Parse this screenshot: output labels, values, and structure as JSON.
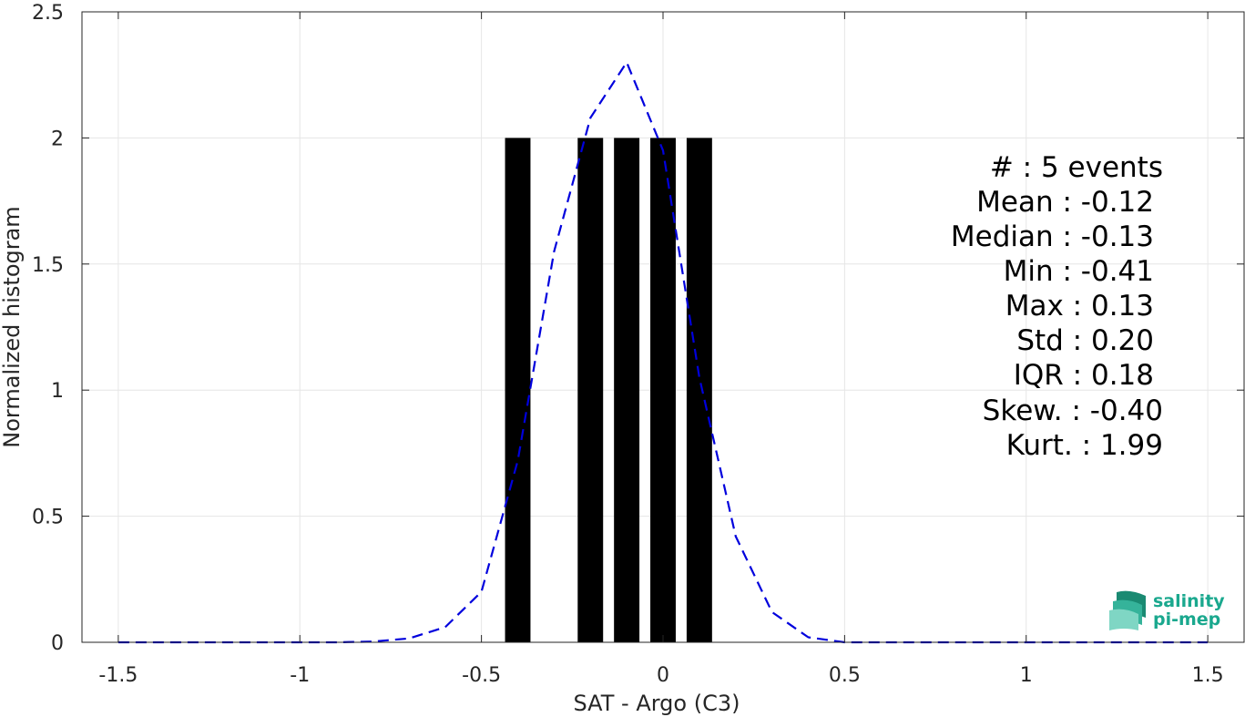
{
  "chart_data": {
    "type": "bar",
    "xlabel": "SAT - Argo (C3)",
    "ylabel": "Normalized histogram",
    "xlim": [
      -1.6,
      1.6
    ],
    "ylim": [
      0,
      2.5
    ],
    "xticks": [
      -1.5,
      -1,
      -0.5,
      0,
      0.5,
      1,
      1.5
    ],
    "xtick_labels": [
      "-1.5",
      "-1",
      "-0.5",
      "0",
      "0.5",
      "1",
      "1.5"
    ],
    "yticks": [
      0,
      0.5,
      1,
      1.5,
      2,
      2.5
    ],
    "ytick_labels": [
      "0",
      "0.5",
      "1",
      "1.5",
      "2",
      "2.5"
    ],
    "grid": true,
    "bars": [
      {
        "x0": -0.435,
        "x1": -0.365,
        "value": 2
      },
      {
        "x0": -0.235,
        "x1": -0.165,
        "value": 2
      },
      {
        "x0": -0.135,
        "x1": -0.065,
        "value": 2
      },
      {
        "x0": -0.035,
        "x1": 0.035,
        "value": 2
      },
      {
        "x0": 0.065,
        "x1": 0.135,
        "value": 2
      }
    ],
    "bar_color": "#000000",
    "fit_curve": {
      "style": "dashed",
      "color": "#0000dd",
      "x": [
        -1.5,
        -1.4,
        -1.3,
        -1.2,
        -1.1,
        -1.0,
        -0.9,
        -0.8,
        -0.7,
        -0.6,
        -0.5,
        -0.4,
        -0.3,
        -0.2,
        -0.1,
        0.0,
        0.1,
        0.2,
        0.3,
        0.4,
        0.5,
        0.6,
        0.7,
        0.8,
        0.9,
        1.0,
        1.1,
        1.2,
        1.3,
        1.4,
        1.5
      ],
      "y": [
        0,
        0,
        0,
        0,
        0,
        0,
        0,
        0.003,
        0.015,
        0.06,
        0.2,
        0.72,
        1.55,
        2.08,
        2.3,
        1.95,
        1.05,
        0.42,
        0.12,
        0.02,
        0,
        0,
        0,
        0,
        0,
        0,
        0,
        0,
        0,
        0,
        0
      ]
    },
    "annotation_lines": [
      "#  : 5 events",
      "Mean : -0.12",
      "Median : -0.13",
      "Min : -0.41",
      "Max : 0.13",
      "Std : 0.20",
      "IQR : 0.18",
      "Skew. : -0.40",
      "Kurt. : 1.99"
    ]
  },
  "logo": {
    "line1": "salinity",
    "line2": "pi-mep",
    "color": "#1aa88e"
  }
}
